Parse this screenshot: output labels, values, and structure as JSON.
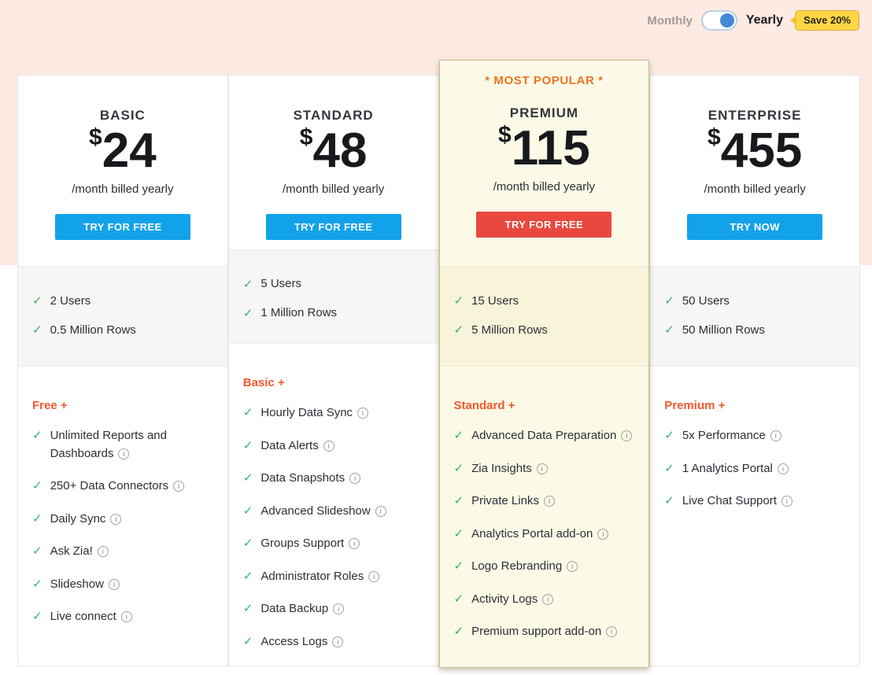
{
  "colors": {
    "top_banner_bg": "#fdeae3",
    "features_header_orange": "#f4572e",
    "most_popular_orange": "#ed7424",
    "check_green": "#35b078",
    "primary_button_blue": "#12a2ea",
    "highlight_button_red": "#e9483f",
    "highlight_card_bg": "#fcfae6",
    "highlight_card_border": "#c9bd8f",
    "capacity_band_bg": "#f6f6f4",
    "save_badge_yellow": "#fcd644",
    "toggle_knob_blue": "#4189d6"
  },
  "billing_toggle": {
    "monthly_label": "Monthly",
    "yearly_label": "Yearly",
    "save_badge_label": "Save 20%",
    "state": "yearly"
  },
  "plans": [
    {
      "name": "BASIC",
      "badge": "",
      "currency": "$",
      "price": "24",
      "billing_note": "/month billed yearly",
      "cta_label": "TRY FOR FREE",
      "cta_color": "#12a2ea",
      "highlight": false,
      "capacity": [
        "2 Users",
        "0.5 Million Rows"
      ],
      "features_header": "Free +",
      "features": [
        "Unlimited Reports and Dashboards",
        "250+ Data Connectors",
        "Daily Sync",
        "Ask Zia!",
        "Slideshow",
        "Live connect"
      ]
    },
    {
      "name": "STANDARD",
      "badge": "",
      "currency": "$",
      "price": "48",
      "billing_note": "/month billed yearly",
      "cta_label": "TRY FOR FREE",
      "cta_color": "#12a2ea",
      "highlight": false,
      "capacity": [
        "5 Users",
        "1 Million Rows"
      ],
      "features_header": "Basic +",
      "features": [
        "Hourly Data Sync",
        "Data Alerts",
        "Data Snapshots",
        "Advanced Slideshow",
        "Groups Support",
        "Administrator Roles",
        "Data Backup",
        "Access Logs"
      ]
    },
    {
      "name": "PREMIUM",
      "badge": "* MOST POPULAR *",
      "currency": "$",
      "price": "115",
      "billing_note": "/month billed yearly",
      "cta_label": "TRY FOR FREE",
      "cta_color": "#e9483f",
      "highlight": true,
      "capacity": [
        "15 Users",
        "5 Million Rows"
      ],
      "features_header": "Standard +",
      "features": [
        "Advanced Data Preparation",
        "Zia Insights",
        "Private Links",
        "Analytics Portal add-on",
        "Logo Rebranding",
        "Activity Logs",
        "Premium support add-on"
      ]
    },
    {
      "name": "ENTERPRISE",
      "badge": "",
      "currency": "$",
      "price": "455",
      "billing_note": "/month billed yearly",
      "cta_label": "TRY NOW",
      "cta_color": "#12a2ea",
      "highlight": false,
      "capacity": [
        "50 Users",
        "50 Million Rows"
      ],
      "features_header": "Premium +",
      "features": [
        "5x Performance",
        "1 Analytics Portal",
        "Live Chat Support"
      ]
    }
  ]
}
